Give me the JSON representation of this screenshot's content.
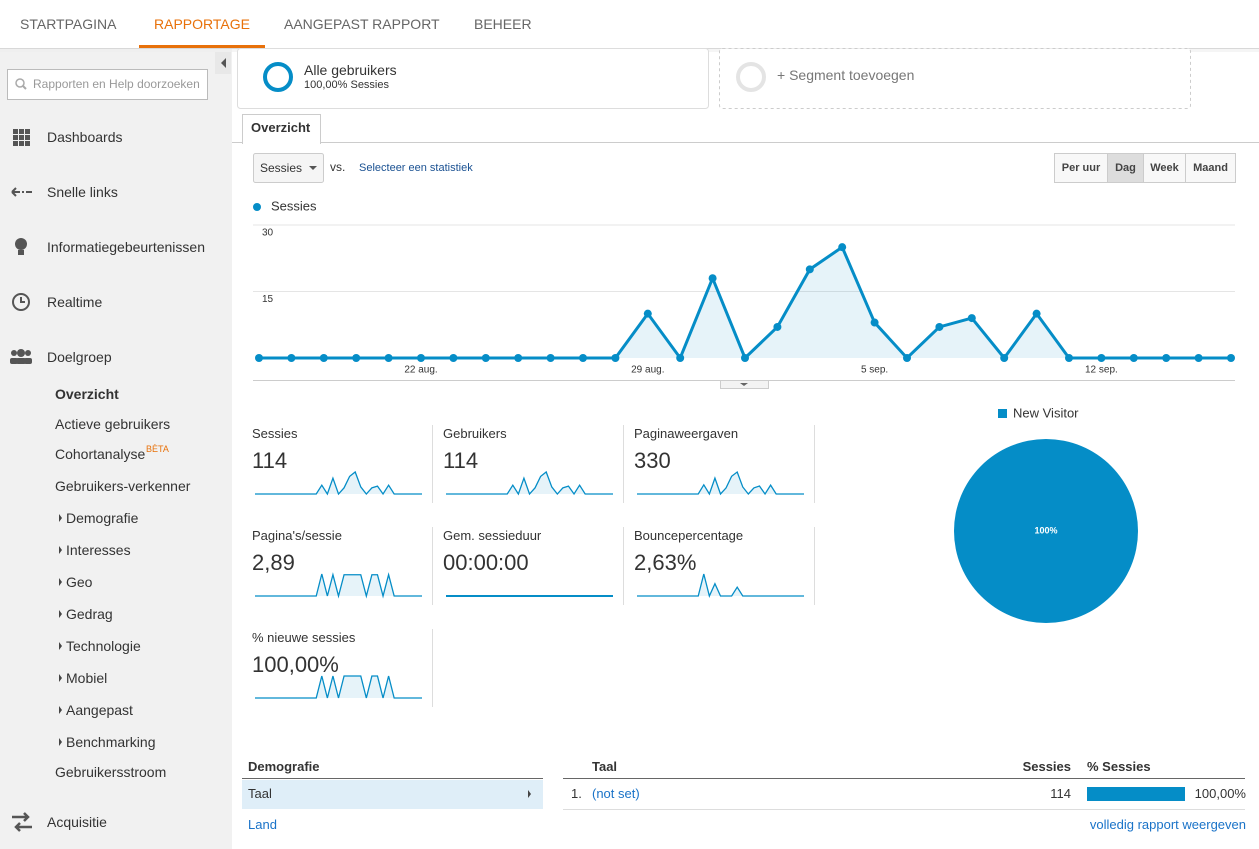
{
  "nav": {
    "tabs": [
      "STARTPAGINA",
      "RAPPORTAGE",
      "AANGEPAST RAPPORT",
      "BEHEER"
    ],
    "active": 1
  },
  "sidebar": {
    "search_placeholder": "Rapporten en Help doorzoeken",
    "sections": [
      "Dashboards",
      "Snelle links",
      "Informatiegebeurtenissen",
      "Realtime",
      "Doelgroep"
    ],
    "subitems": [
      {
        "label": "Overzicht",
        "active": true
      },
      {
        "label": "Actieve gebruikers"
      },
      {
        "label": "Cohortanalyse",
        "badge": "BÈTA"
      },
      {
        "label": "Gebruikers-verkenner"
      },
      {
        "label": "Demografie",
        "expandable": true
      },
      {
        "label": "Interesses",
        "expandable": true
      },
      {
        "label": "Geo",
        "expandable": true
      },
      {
        "label": "Gedrag",
        "expandable": true
      },
      {
        "label": "Technologie",
        "expandable": true
      },
      {
        "label": "Mobiel",
        "expandable": true
      },
      {
        "label": "Aangepast",
        "expandable": true
      },
      {
        "label": "Benchmarking",
        "expandable": true
      },
      {
        "label": "Gebruikersstroom"
      }
    ],
    "last": "Acquisitie"
  },
  "segments": {
    "name": "Alle gebruikers",
    "detail": "100,00% Sessies",
    "add": "+ Segment toevoegen"
  },
  "tab": "Overzicht",
  "controls": {
    "metric": "Sessies",
    "vs": "vs.",
    "select": "Selecteer een statistiek",
    "periods": [
      "Per uur",
      "Dag",
      "Week",
      "Maand"
    ],
    "active_period": 1
  },
  "chart_data": [
    {
      "type": "line",
      "categories": [
        null,
        null,
        null,
        null,
        null,
        "22 aug.",
        null,
        null,
        null,
        null,
        null,
        null,
        "29 aug.",
        null,
        null,
        null,
        null,
        null,
        null,
        "5 sep.",
        null,
        null,
        null,
        null,
        null,
        null,
        "12 sep.",
        null,
        null,
        null,
        null
      ],
      "series": [
        {
          "name": "Sessies",
          "color": "#058dc7",
          "values": [
            0,
            0,
            0,
            0,
            0,
            0,
            0,
            0,
            0,
            0,
            0,
            0,
            10,
            0,
            18,
            0,
            7,
            20,
            25,
            8,
            0,
            7,
            9,
            0,
            10,
            0,
            0,
            0,
            0,
            0,
            0
          ]
        }
      ],
      "ylim": [
        0,
        30
      ],
      "yticks": [
        15,
        30
      ],
      "grid": true
    },
    {
      "type": "pie",
      "categories": [
        "New Visitor"
      ],
      "values": [
        100
      ],
      "value_labels": [
        "100%"
      ],
      "colors": [
        "#058dc7"
      ]
    }
  ],
  "metrics": [
    {
      "label": "Sessies",
      "value": "114",
      "spark": [
        0,
        0,
        0,
        0,
        0,
        0,
        0,
        0,
        0,
        0,
        0,
        0,
        10,
        0,
        18,
        0,
        7,
        20,
        25,
        8,
        0,
        7,
        9,
        0,
        10,
        0,
        0,
        0,
        0,
        0,
        0
      ]
    },
    {
      "label": "Gebruikers",
      "value": "114",
      "spark": [
        0,
        0,
        0,
        0,
        0,
        0,
        0,
        0,
        0,
        0,
        0,
        0,
        10,
        0,
        18,
        0,
        7,
        20,
        25,
        8,
        0,
        7,
        9,
        0,
        10,
        0,
        0,
        0,
        0,
        0,
        0
      ]
    },
    {
      "label": "Paginaweergaven",
      "value": "330",
      "spark": [
        0,
        0,
        0,
        0,
        0,
        0,
        0,
        0,
        0,
        0,
        0,
        0,
        30,
        0,
        52,
        0,
        20,
        58,
        72,
        23,
        0,
        20,
        26,
        0,
        29,
        0,
        0,
        0,
        0,
        0,
        0
      ]
    },
    {
      "label": "Pagina's/sessie",
      "value": "2,89",
      "spark": [
        0,
        0,
        0,
        0,
        0,
        0,
        0,
        0,
        0,
        0,
        0,
        0,
        3,
        0,
        2.9,
        0,
        2.9,
        2.9,
        2.9,
        2.9,
        0,
        2.9,
        2.9,
        0,
        2.9,
        0,
        0,
        0,
        0,
        0,
        0
      ]
    },
    {
      "label": "Gem. sessieduur",
      "value": "00:00:00",
      "spark": [
        0,
        0,
        0,
        0,
        0,
        0,
        0,
        0,
        0,
        0,
        0,
        0,
        0,
        0,
        0,
        0,
        0,
        0,
        0,
        0,
        0,
        0,
        0,
        0,
        0,
        0,
        0,
        0,
        0,
        0,
        0
      ]
    },
    {
      "label": "Bouncepercentage",
      "value": "2,63%",
      "spark": [
        0,
        0,
        0,
        0,
        0,
        0,
        0,
        0,
        0,
        0,
        0,
        0,
        10,
        0,
        5.6,
        0,
        0,
        0,
        4,
        0,
        0,
        0,
        0,
        0,
        0,
        0,
        0,
        0,
        0,
        0,
        0
      ]
    },
    {
      "label": "% nieuwe sessies",
      "value": "100,00%",
      "spark": [
        0,
        0,
        0,
        0,
        0,
        0,
        0,
        0,
        0,
        0,
        0,
        0,
        100,
        0,
        100,
        0,
        100,
        100,
        100,
        100,
        0,
        100,
        100,
        0,
        100,
        0,
        0,
        0,
        0,
        0,
        0
      ]
    }
  ],
  "table": {
    "left": {
      "title": "Demografie",
      "items": [
        "Taal",
        "Land"
      ],
      "active": 0
    },
    "right": {
      "headers": [
        "Taal",
        "Sessies",
        "% Sessies"
      ],
      "rows": [
        {
          "rank": "1.",
          "name": "(not set)",
          "sessions": "114",
          "pct": 100,
          "pct_label": "100,00%"
        }
      ],
      "link": "volledig rapport weergeven"
    }
  }
}
